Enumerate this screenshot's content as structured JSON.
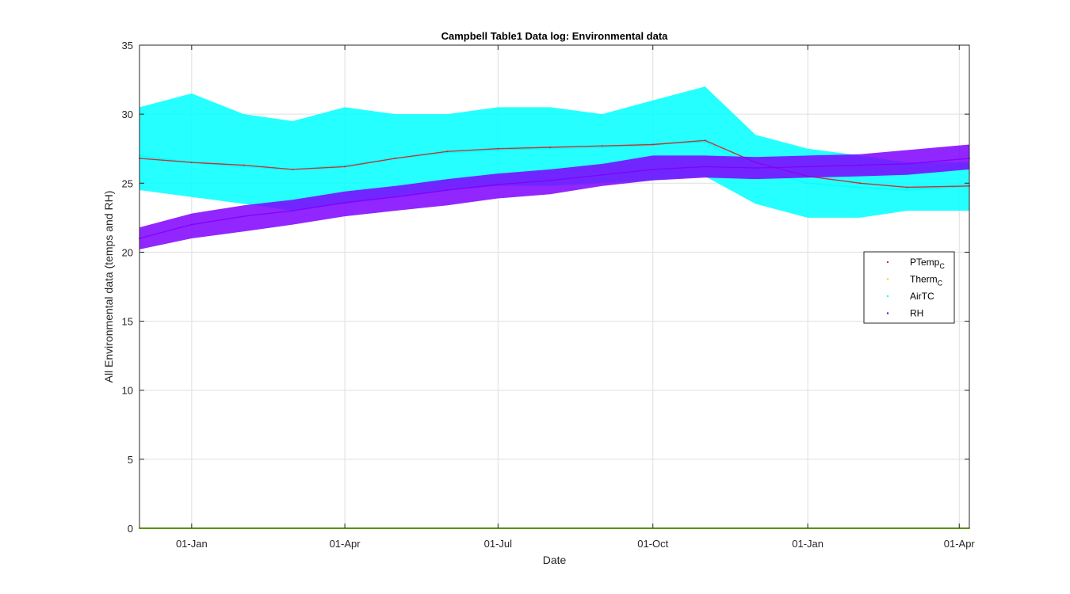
{
  "chart_data": {
    "type": "line",
    "title": "Campbell Table1 Data log: Environmental data",
    "xlabel": "Date",
    "ylabel": "All Environmental data (temps and RH)",
    "x_ticks": [
      "2016-01-01",
      "2016-04-01",
      "2016-07-01",
      "2016-10-01",
      "2017-01-01",
      "2017-04-01"
    ],
    "x_tick_labels": [
      "01-Jan",
      "01-Apr",
      "01-Jul",
      "01-Oct",
      "01-Jan",
      "01-Apr"
    ],
    "xlim": [
      "2015-12-01",
      "2017-04-07"
    ],
    "ylim": [
      0,
      35
    ],
    "y_ticks": [
      0,
      5,
      10,
      15,
      20,
      25,
      30,
      35
    ],
    "grid": true,
    "legend_position": "right",
    "series": [
      {
        "name": "PTemp",
        "subscript": "C",
        "color": "#d62020",
        "x": [
          "2015-12-01",
          "2016-01-01",
          "2016-02-01",
          "2016-03-01",
          "2016-04-01",
          "2016-05-01",
          "2016-06-01",
          "2016-07-01",
          "2016-08-01",
          "2016-09-01",
          "2016-10-01",
          "2016-11-01",
          "2016-12-01",
          "2017-01-01",
          "2017-02-01",
          "2017-03-01",
          "2017-04-07"
        ],
        "values": [
          26.8,
          26.5,
          26.3,
          26.0,
          26.2,
          26.8,
          27.3,
          27.5,
          27.6,
          27.7,
          27.8,
          28.1,
          26.5,
          25.5,
          25.0,
          24.7,
          24.8
        ]
      },
      {
        "name": "Therm",
        "subscript": "C",
        "color": "#ffd700",
        "x": [
          "2015-12-01",
          "2016-04-01",
          "2016-08-01",
          "2016-12-01",
          "2017-04-07"
        ],
        "values": [
          0,
          0,
          0,
          0,
          0
        ]
      },
      {
        "name": "AirTC",
        "color": "#00ffff",
        "x": [
          "2015-12-01",
          "2016-01-01",
          "2016-02-01",
          "2016-03-01",
          "2016-04-01",
          "2016-05-01",
          "2016-06-01",
          "2016-07-01",
          "2016-08-01",
          "2016-09-01",
          "2016-10-01",
          "2016-11-01",
          "2016-12-01",
          "2017-01-01",
          "2017-02-01",
          "2017-03-01",
          "2017-04-07"
        ],
        "values": [
          27.0,
          26.5,
          26.2,
          26.0,
          26.3,
          26.8,
          27.2,
          27.4,
          27.5,
          27.6,
          27.8,
          28.0,
          26.0,
          25.0,
          24.7,
          24.5,
          24.8
        ],
        "range_min": [
          24.5,
          24.0,
          23.5,
          23.0,
          23.5,
          24.0,
          24.5,
          24.8,
          24.8,
          25.0,
          25.2,
          25.5,
          23.5,
          22.5,
          22.5,
          23.0,
          23.0
        ],
        "range_max": [
          30.5,
          31.5,
          30.0,
          29.5,
          30.5,
          30.0,
          30.0,
          30.5,
          30.5,
          30.0,
          31.0,
          32.0,
          28.5,
          27.5,
          27.0,
          26.5,
          26.5
        ]
      },
      {
        "name": "RH",
        "color": "#7f00ff",
        "x": [
          "2015-12-01",
          "2016-01-01",
          "2016-02-01",
          "2016-03-01",
          "2016-04-01",
          "2016-05-01",
          "2016-06-01",
          "2016-07-01",
          "2016-08-01",
          "2016-09-01",
          "2016-10-01",
          "2016-11-01",
          "2016-12-01",
          "2017-01-01",
          "2017-02-01",
          "2017-03-01",
          "2017-04-07"
        ],
        "values": [
          21.0,
          22.0,
          22.6,
          23.0,
          23.6,
          24.0,
          24.5,
          24.9,
          25.2,
          25.6,
          26.0,
          26.2,
          26.1,
          26.2,
          26.3,
          26.4,
          26.8
        ],
        "range_min": [
          20.2,
          21.0,
          21.5,
          22.0,
          22.6,
          23.0,
          23.4,
          23.9,
          24.2,
          24.8,
          25.2,
          25.4,
          25.3,
          25.4,
          25.5,
          25.6,
          26.0
        ],
        "range_max": [
          21.8,
          22.8,
          23.4,
          23.8,
          24.4,
          24.8,
          25.3,
          25.7,
          26.0,
          26.4,
          27.0,
          27.0,
          26.9,
          27.0,
          27.1,
          27.4,
          27.8
        ]
      },
      {
        "name": "",
        "color": "#7fff00",
        "x": [
          "2015-12-01",
          "2017-04-07"
        ],
        "values": [
          0,
          0
        ]
      }
    ]
  }
}
